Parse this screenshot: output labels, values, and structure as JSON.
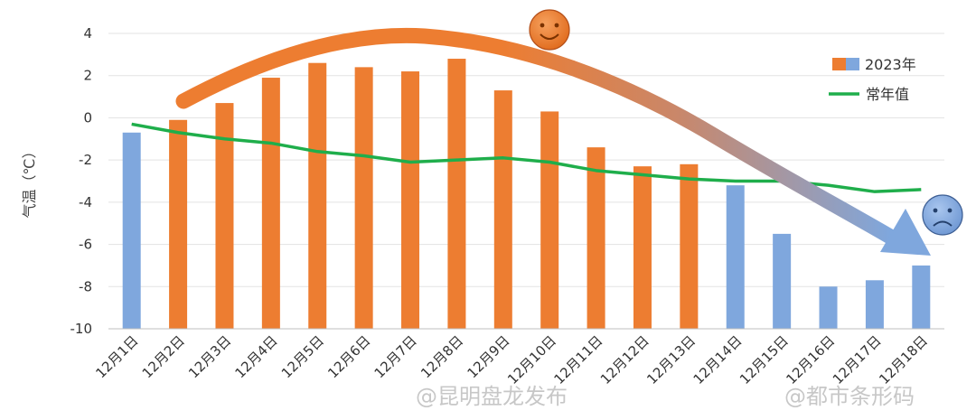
{
  "chart_data": {
    "type": "bar",
    "ylabel": "气温（℃）",
    "ylim": [
      -10,
      4
    ],
    "yticks": [
      4,
      2,
      0,
      -2,
      -4,
      -6,
      -8,
      -10
    ],
    "grid": "horizontal",
    "legend_position": "top-right",
    "categories": [
      "12月1日",
      "12月2日",
      "12月3日",
      "12月4日",
      "12月5日",
      "12月6日",
      "12月7日",
      "12月8日",
      "12月9日",
      "12月10日",
      "12月11日",
      "12月12日",
      "12月13日",
      "12月14日",
      "12月15日",
      "12月16日",
      "12月17日",
      "12月18日"
    ],
    "series": [
      {
        "name": "2023年",
        "type": "bar",
        "values": [
          -0.7,
          -0.1,
          0.7,
          1.9,
          2.6,
          2.4,
          2.2,
          2.8,
          1.3,
          0.3,
          -1.4,
          -2.3,
          -2.2,
          -3.2,
          -5.5,
          -8.0,
          -7.7,
          -7.0
        ],
        "colors": [
          "#7FA7DD",
          "#ED7D31",
          "#ED7D31",
          "#ED7D31",
          "#ED7D31",
          "#ED7D31",
          "#ED7D31",
          "#ED7D31",
          "#ED7D31",
          "#ED7D31",
          "#ED7D31",
          "#ED7D31",
          "#ED7D31",
          "#7FA7DD",
          "#7FA7DD",
          "#7FA7DD",
          "#7FA7DD",
          "#7FA7DD"
        ]
      },
      {
        "name": "常年值",
        "type": "line",
        "color": "#1FAE4B",
        "values": [
          -0.3,
          -0.7,
          -1.0,
          -1.2,
          -1.6,
          -1.8,
          -2.1,
          -2.0,
          -1.9,
          -2.1,
          -2.5,
          -2.7,
          -2.9,
          -3.0,
          -3.0,
          -3.2,
          -3.5,
          -3.4
        ]
      }
    ],
    "annotations": {
      "warm_icon": "smiley-face-icon",
      "cold_icon": "sad-face-icon",
      "trend_arrow": "curved-trend-arrow"
    },
    "colors": {
      "warm": "#ED7D31",
      "cold": "#7FA7DD",
      "normal": "#1FAE4B"
    }
  },
  "watermarks": [
    "@昆明盘龙发布",
    "@都市条形码"
  ]
}
